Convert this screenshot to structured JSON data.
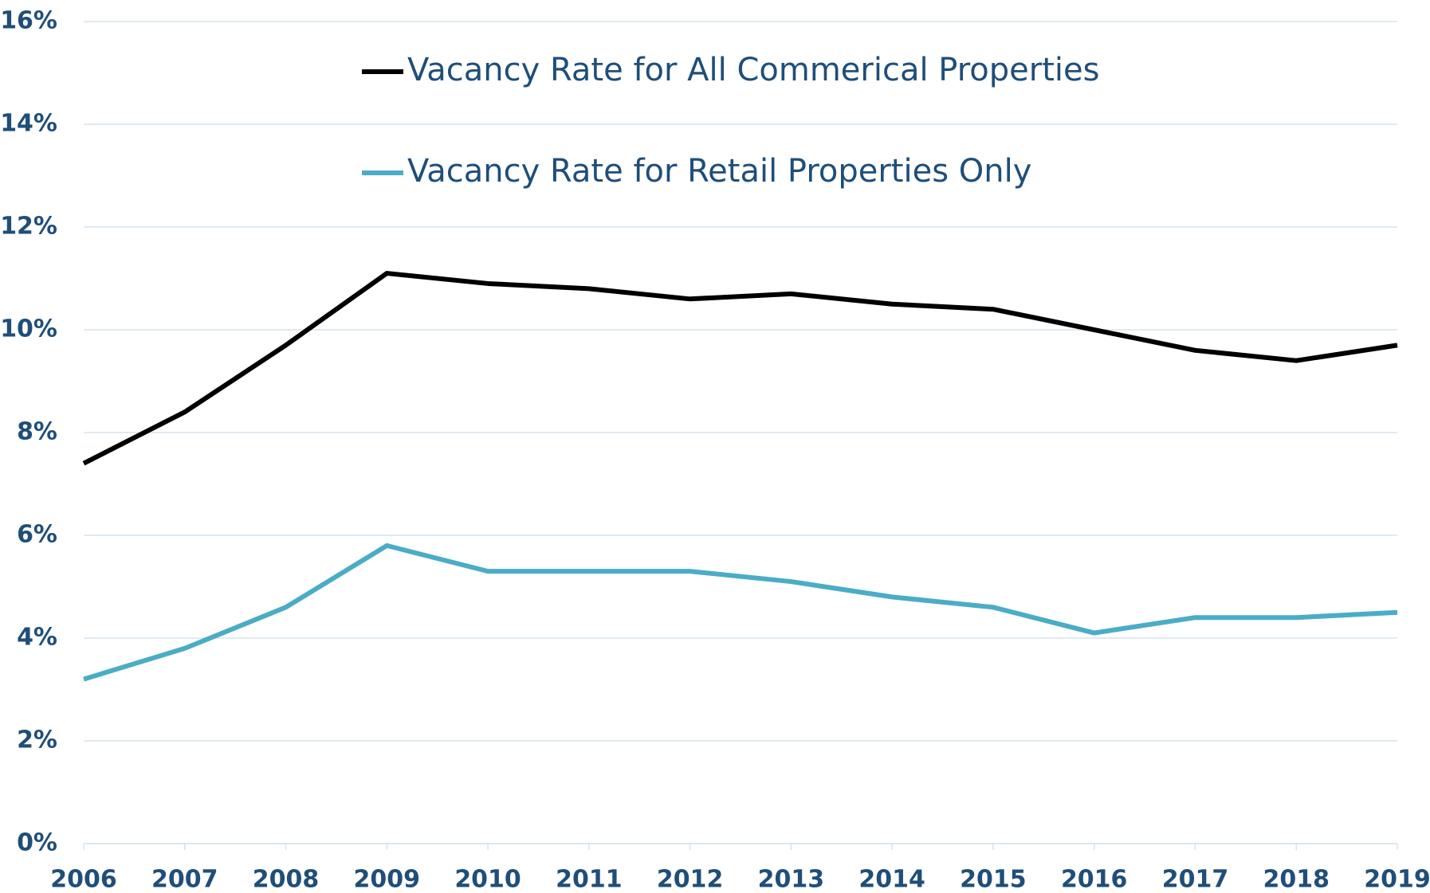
{
  "chart_data": {
    "type": "line",
    "categories": [
      "2006",
      "2007",
      "2008",
      "2009",
      "2010",
      "2011",
      "2012",
      "2013",
      "2014",
      "2015",
      "2016",
      "2017",
      "2018",
      "2019"
    ],
    "series": [
      {
        "name": "Vacancy Rate for All Commerical Properties",
        "color": "#000000",
        "values": [
          7.4,
          8.4,
          9.7,
          11.1,
          10.9,
          10.8,
          10.6,
          10.7,
          10.5,
          10.4,
          10.0,
          9.6,
          9.4,
          9.7
        ]
      },
      {
        "name": "Vacancy Rate for Retail Properties Only",
        "color": "#4bacc6",
        "values": [
          3.2,
          3.8,
          4.6,
          5.8,
          5.3,
          5.3,
          5.3,
          5.1,
          4.8,
          4.6,
          4.1,
          4.4,
          4.4,
          4.5
        ]
      }
    ],
    "ylim": [
      0,
      16
    ],
    "yticks": [
      {
        "value": 0,
        "label": "0%"
      },
      {
        "value": 2,
        "label": "2%"
      },
      {
        "value": 4,
        "label": "4%"
      },
      {
        "value": 6,
        "label": "6%"
      },
      {
        "value": 8,
        "label": "8%"
      },
      {
        "value": 10,
        "label": "10%"
      },
      {
        "value": 12,
        "label": "12%"
      },
      {
        "value": 14,
        "label": "14%"
      },
      {
        "value": 16,
        "label": "16%"
      }
    ],
    "grid": true
  }
}
